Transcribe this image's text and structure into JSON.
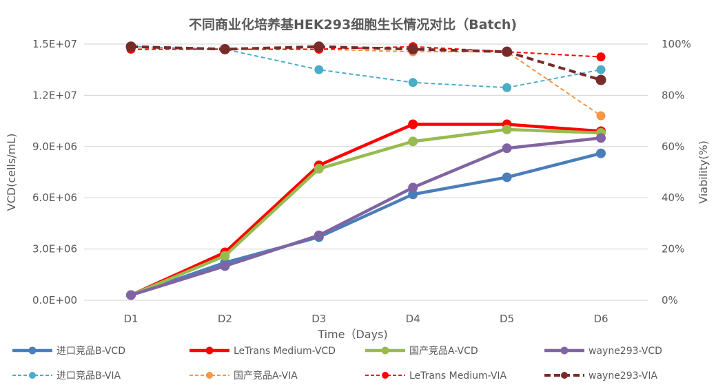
{
  "chart_data": {
    "type": "line",
    "title": "不同商业化培养基HEK293细胞生长情况对比（Batch)",
    "xlabel": "Time（Days)",
    "ylabel": "VCD(cells/mL)",
    "y2label": "Viability(%)",
    "categories": [
      "D1",
      "D2",
      "D3",
      "D4",
      "D5",
      "D6"
    ],
    "ylim": [
      0,
      15000000
    ],
    "y2lim": [
      0,
      100
    ],
    "yticks": [
      "0.0E+00",
      "3.0E+06",
      "6.0E+06",
      "9.0E+06",
      "1.2E+07",
      "1.5E+07"
    ],
    "y2ticks": [
      "0%",
      "20%",
      "40%",
      "60%",
      "80%",
      "100%"
    ],
    "grid": true,
    "legend_position": "bottom",
    "series": [
      {
        "name": "进口竞品B-VCD",
        "axis": "left",
        "style": "solid",
        "color": "#4a7ebb",
        "values": [
          300000,
          2200000,
          3700000,
          6200000,
          7200000,
          8600000
        ]
      },
      {
        "name": "LeTrans Medium-VCD",
        "axis": "left",
        "style": "solid",
        "color": "#ff0000",
        "values": [
          300000,
          2800000,
          7900000,
          10300000,
          10300000,
          9900000
        ]
      },
      {
        "name": "国产竞品A-VCD",
        "axis": "left",
        "style": "solid",
        "color": "#98bb4f",
        "values": [
          300000,
          2600000,
          7700000,
          9300000,
          10000000,
          9800000
        ]
      },
      {
        "name": "wayne293-VCD",
        "axis": "left",
        "style": "solid",
        "color": "#8064a2",
        "values": [
          300000,
          2000000,
          3800000,
          6600000,
          8900000,
          9500000
        ]
      },
      {
        "name": "进口竞品B-VIA",
        "axis": "right",
        "style": "dash-light",
        "color": "#4bacc6",
        "values": [
          99,
          98,
          90,
          85,
          83,
          90
        ]
      },
      {
        "name": "国产竞品A-VIA",
        "axis": "right",
        "style": "dash-light",
        "color": "#f79646",
        "values": [
          98,
          98,
          98,
          97,
          97,
          72
        ]
      },
      {
        "name": "LeTrans Medium-VIA",
        "axis": "right",
        "style": "dash-light",
        "color": "#ff0000",
        "values": [
          98,
          98,
          98,
          99,
          97,
          95
        ]
      },
      {
        "name": "wayne293-VIA",
        "axis": "right",
        "style": "dash-heavy",
        "color": "#772c2a",
        "values": [
          99,
          98,
          99,
          98,
          97,
          86
        ]
      }
    ]
  }
}
